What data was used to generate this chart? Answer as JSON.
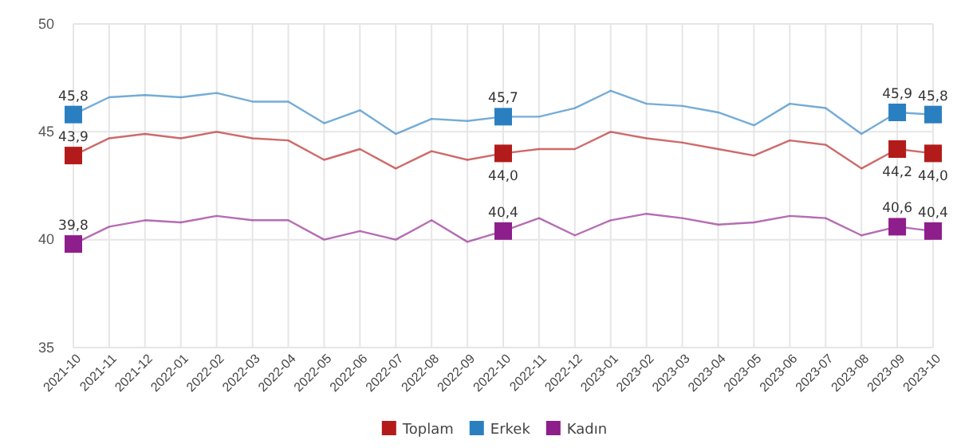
{
  "chart_data": {
    "type": "line",
    "categories": [
      "2021-10",
      "2021-11",
      "2021-12",
      "2022-01",
      "2022-02",
      "2022-03",
      "2022-04",
      "2022-05",
      "2022-06",
      "2022-07",
      "2022-08",
      "2022-09",
      "2022-10",
      "2022-11",
      "2022-12",
      "2023-01",
      "2023-02",
      "2023-03",
      "2023-04",
      "2023-05",
      "2023-06",
      "2023-07",
      "2023-08",
      "2023-09",
      "2023-10"
    ],
    "series": [
      {
        "name": "Toplam",
        "color": "#b31b1b",
        "values": [
          43.9,
          44.7,
          44.9,
          44.7,
          45.0,
          44.7,
          44.6,
          43.7,
          44.2,
          43.3,
          44.1,
          43.7,
          44.0,
          44.2,
          44.2,
          45.0,
          44.7,
          44.5,
          44.2,
          43.9,
          44.6,
          44.4,
          43.3,
          44.2,
          44.0
        ],
        "value_labels": [
          "43,9",
          null,
          null,
          null,
          null,
          null,
          null,
          null,
          null,
          null,
          null,
          null,
          "44,0",
          null,
          null,
          null,
          null,
          null,
          null,
          null,
          null,
          null,
          null,
          "44,2",
          "44,0"
        ]
      },
      {
        "name": "Erkek",
        "color": "#2a7fc1",
        "values": [
          45.8,
          46.6,
          46.7,
          46.6,
          46.8,
          46.4,
          46.4,
          45.4,
          46.0,
          44.9,
          45.6,
          45.5,
          45.7,
          45.7,
          46.1,
          46.9,
          46.3,
          46.2,
          45.9,
          45.3,
          46.3,
          46.1,
          44.9,
          45.9,
          45.8
        ],
        "value_labels": [
          "45,8",
          null,
          null,
          null,
          null,
          null,
          null,
          null,
          null,
          null,
          null,
          null,
          "45,7",
          null,
          null,
          null,
          null,
          null,
          null,
          null,
          null,
          null,
          null,
          "45,9",
          "45,8"
        ]
      },
      {
        "name": "Kadın",
        "color": "#8e1e8c",
        "values": [
          39.8,
          40.6,
          40.9,
          40.8,
          41.1,
          40.9,
          40.9,
          40.0,
          40.4,
          40.0,
          40.9,
          39.9,
          40.4,
          41.0,
          40.2,
          40.9,
          41.2,
          41.0,
          40.7,
          40.8,
          41.1,
          41.0,
          40.2,
          40.6,
          40.4
        ],
        "value_labels": [
          "39,8",
          null,
          null,
          null,
          null,
          null,
          null,
          null,
          null,
          null,
          null,
          null,
          "40,4",
          null,
          null,
          null,
          null,
          null,
          null,
          null,
          null,
          null,
          null,
          "40,6",
          "40,4"
        ]
      }
    ],
    "ylim": [
      35,
      50
    ],
    "yticks": [
      35,
      40,
      45,
      50
    ],
    "grid": true,
    "legend": "bottom",
    "line_style": "solid"
  }
}
